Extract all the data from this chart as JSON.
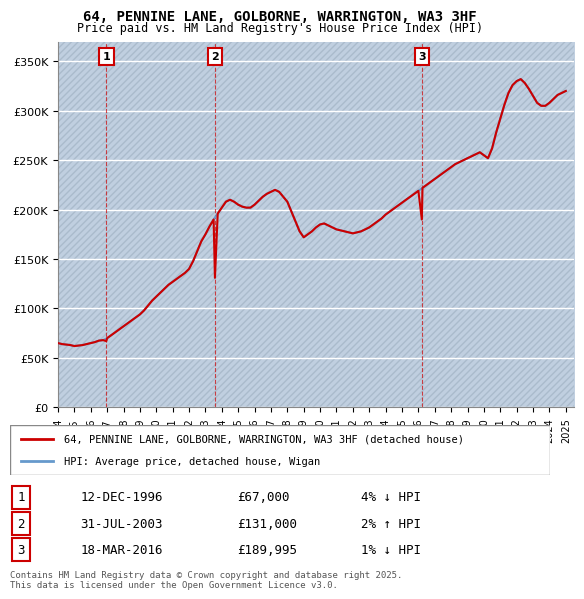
{
  "title_line1": "64, PENNINE LANE, GOLBORNE, WARRINGTON, WA3 3HF",
  "title_line2": "Price paid vs. HM Land Registry's House Price Index (HPI)",
  "ylabel": "",
  "background_color": "#ffffff",
  "plot_bg_color": "#dce6f0",
  "hatch_color": "#c0cfe0",
  "grid_color": "#ffffff",
  "line_color_red": "#cc0000",
  "line_color_blue": "#6699cc",
  "sale_markers": [
    {
      "year": 1996.95,
      "price": 67000,
      "label": "1"
    },
    {
      "year": 2003.58,
      "price": 131000,
      "label": "2"
    },
    {
      "year": 2016.21,
      "price": 189995,
      "label": "3"
    }
  ],
  "xmin": 1994,
  "xmax": 2025.5,
  "ymin": 0,
  "ymax": 370000,
  "yticks": [
    0,
    50000,
    100000,
    150000,
    200000,
    250000,
    300000,
    350000
  ],
  "ytick_labels": [
    "£0",
    "£50K",
    "£100K",
    "£150K",
    "£200K",
    "£250K",
    "£300K",
    "£350K"
  ],
  "legend_label_red": "64, PENNINE LANE, GOLBORNE, WARRINGTON, WA3 3HF (detached house)",
  "legend_label_blue": "HPI: Average price, detached house, Wigan",
  "table_rows": [
    {
      "num": "1",
      "date": "12-DEC-1996",
      "price": "£67,000",
      "pct": "4% ↓ HPI"
    },
    {
      "num": "2",
      "date": "31-JUL-2003",
      "price": "£131,000",
      "pct": "2% ↑ HPI"
    },
    {
      "num": "3",
      "date": "18-MAR-2016",
      "price": "£189,995",
      "pct": "1% ↓ HPI"
    }
  ],
  "footnote": "Contains HM Land Registry data © Crown copyright and database right 2025.\nThis data is licensed under the Open Government Licence v3.0.",
  "hpi_data_x": [
    1994.0,
    1994.25,
    1994.5,
    1994.75,
    1995.0,
    1995.25,
    1995.5,
    1995.75,
    1996.0,
    1996.25,
    1996.5,
    1996.75,
    1997.0,
    1997.25,
    1997.5,
    1997.75,
    1998.0,
    1998.25,
    1998.5,
    1998.75,
    1999.0,
    1999.25,
    1999.5,
    1999.75,
    2000.0,
    2000.25,
    2000.5,
    2000.75,
    2001.0,
    2001.25,
    2001.5,
    2001.75,
    2002.0,
    2002.25,
    2002.5,
    2002.75,
    2003.0,
    2003.25,
    2003.5,
    2003.75,
    2004.0,
    2004.25,
    2004.5,
    2004.75,
    2005.0,
    2005.25,
    2005.5,
    2005.75,
    2006.0,
    2006.25,
    2006.5,
    2006.75,
    2007.0,
    2007.25,
    2007.5,
    2007.75,
    2008.0,
    2008.25,
    2008.5,
    2008.75,
    2009.0,
    2009.25,
    2009.5,
    2009.75,
    2010.0,
    2010.25,
    2010.5,
    2010.75,
    2011.0,
    2011.25,
    2011.5,
    2011.75,
    2012.0,
    2012.25,
    2012.5,
    2012.75,
    2013.0,
    2013.25,
    2013.5,
    2013.75,
    2014.0,
    2014.25,
    2014.5,
    2014.75,
    2015.0,
    2015.25,
    2015.5,
    2015.75,
    2016.0,
    2016.25,
    2016.5,
    2016.75,
    2017.0,
    2017.25,
    2017.5,
    2017.75,
    2018.0,
    2018.25,
    2018.5,
    2018.75,
    2019.0,
    2019.25,
    2019.5,
    2019.75,
    2020.0,
    2020.25,
    2020.5,
    2020.75,
    2021.0,
    2021.25,
    2021.5,
    2021.75,
    2022.0,
    2022.25,
    2022.5,
    2022.75,
    2023.0,
    2023.25,
    2023.5,
    2023.75,
    2024.0,
    2024.25,
    2024.5,
    2024.75,
    2025.0
  ],
  "hpi_data_y": [
    65000,
    64000,
    63500,
    63000,
    62000,
    62500,
    63000,
    64000,
    65000,
    66000,
    67500,
    68000,
    70000,
    73000,
    76000,
    79000,
    82000,
    85000,
    88000,
    91000,
    94000,
    98000,
    103000,
    108000,
    112000,
    116000,
    120000,
    124000,
    127000,
    130000,
    133000,
    136000,
    140000,
    148000,
    158000,
    168000,
    175000,
    183000,
    190000,
    196000,
    202000,
    208000,
    210000,
    208000,
    205000,
    203000,
    202000,
    202000,
    205000,
    209000,
    213000,
    216000,
    218000,
    220000,
    218000,
    213000,
    208000,
    198000,
    188000,
    178000,
    172000,
    175000,
    178000,
    182000,
    185000,
    186000,
    184000,
    182000,
    180000,
    179000,
    178000,
    177000,
    176000,
    177000,
    178000,
    180000,
    182000,
    185000,
    188000,
    191000,
    195000,
    198000,
    201000,
    204000,
    207000,
    210000,
    213000,
    216000,
    219000,
    222000,
    225000,
    228000,
    231000,
    234000,
    237000,
    240000,
    243000,
    246000,
    248000,
    250000,
    252000,
    254000,
    256000,
    258000,
    255000,
    252000,
    262000,
    278000,
    292000,
    306000,
    318000,
    326000,
    330000,
    332000,
    328000,
    322000,
    315000,
    308000,
    305000,
    305000,
    308000,
    312000,
    316000,
    318000,
    320000
  ],
  "price_data_x": [
    1994.0,
    1994.25,
    1994.5,
    1994.75,
    1995.0,
    1995.25,
    1995.5,
    1995.75,
    1996.0,
    1996.25,
    1996.5,
    1996.75,
    1996.95,
    1997.0,
    1997.25,
    1997.5,
    1997.75,
    1998.0,
    1998.25,
    1998.5,
    1998.75,
    1999.0,
    1999.25,
    1999.5,
    1999.75,
    2000.0,
    2000.25,
    2000.5,
    2000.75,
    2001.0,
    2001.25,
    2001.5,
    2001.75,
    2002.0,
    2002.25,
    2002.5,
    2002.75,
    2003.0,
    2003.25,
    2003.5,
    2003.58,
    2003.75,
    2004.0,
    2004.25,
    2004.5,
    2004.75,
    2005.0,
    2005.25,
    2005.5,
    2005.75,
    2006.0,
    2006.25,
    2006.5,
    2006.75,
    2007.0,
    2007.25,
    2007.5,
    2007.75,
    2008.0,
    2008.25,
    2008.5,
    2008.75,
    2009.0,
    2009.25,
    2009.5,
    2009.75,
    2010.0,
    2010.25,
    2010.5,
    2010.75,
    2011.0,
    2011.25,
    2011.5,
    2011.75,
    2012.0,
    2012.25,
    2012.5,
    2012.75,
    2013.0,
    2013.25,
    2013.5,
    2013.75,
    2014.0,
    2014.25,
    2014.5,
    2014.75,
    2015.0,
    2015.25,
    2015.5,
    2015.75,
    2016.0,
    2016.21,
    2016.25,
    2016.5,
    2016.75,
    2017.0,
    2017.25,
    2017.5,
    2017.75,
    2018.0,
    2018.25,
    2018.5,
    2018.75,
    2019.0,
    2019.25,
    2019.5,
    2019.75,
    2020.0,
    2020.25,
    2020.5,
    2020.75,
    2021.0,
    2021.25,
    2021.5,
    2021.75,
    2022.0,
    2022.25,
    2022.5,
    2022.75,
    2023.0,
    2023.25,
    2023.5,
    2023.75,
    2024.0,
    2024.25,
    2024.5,
    2024.75,
    2025.0
  ],
  "price_data_y": [
    65000,
    64000,
    63500,
    63000,
    62000,
    62500,
    63000,
    64000,
    65000,
    66000,
    67500,
    68000,
    67000,
    70000,
    73000,
    76000,
    79000,
    82000,
    85000,
    88000,
    91000,
    94000,
    98000,
    103000,
    108000,
    112000,
    116000,
    120000,
    124000,
    127000,
    130000,
    133000,
    136000,
    140000,
    148000,
    158000,
    168000,
    175000,
    183000,
    190000,
    131000,
    196000,
    202000,
    208000,
    210000,
    208000,
    205000,
    203000,
    202000,
    202000,
    205000,
    209000,
    213000,
    216000,
    218000,
    220000,
    218000,
    213000,
    208000,
    198000,
    188000,
    178000,
    172000,
    175000,
    178000,
    182000,
    185000,
    186000,
    184000,
    182000,
    180000,
    179000,
    178000,
    177000,
    176000,
    177000,
    178000,
    180000,
    182000,
    185000,
    188000,
    191000,
    195000,
    198000,
    201000,
    204000,
    207000,
    210000,
    213000,
    216000,
    219000,
    189995,
    222000,
    225000,
    228000,
    231000,
    234000,
    237000,
    240000,
    243000,
    246000,
    248000,
    250000,
    252000,
    254000,
    256000,
    258000,
    255000,
    252000,
    262000,
    278000,
    292000,
    306000,
    318000,
    326000,
    330000,
    332000,
    328000,
    322000,
    315000,
    308000,
    305000,
    305000,
    308000,
    312000,
    316000,
    318000,
    320000
  ]
}
